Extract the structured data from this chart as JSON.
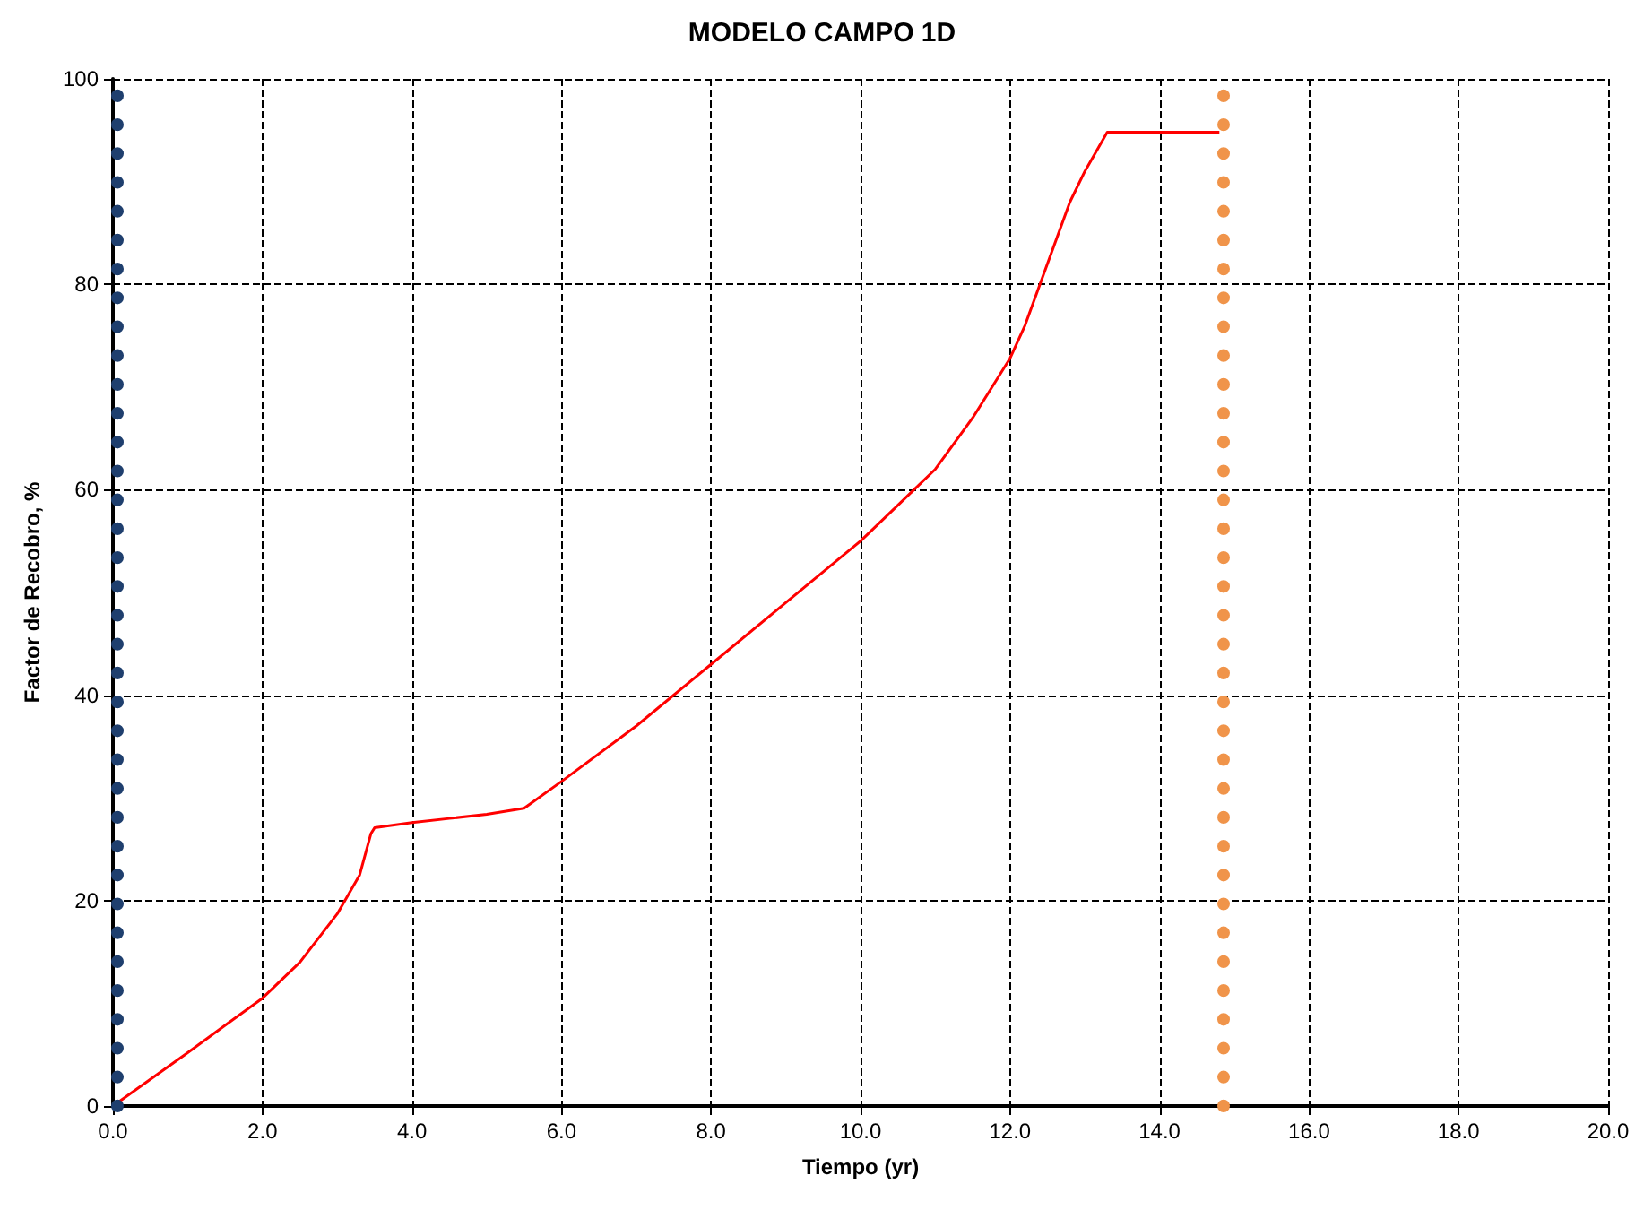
{
  "chart_data": {
    "type": "line",
    "title": "MODELO CAMPO 1D",
    "xlabel": "Tiempo (yr)",
    "ylabel": "Factor de Recobro, %",
    "x": [
      0,
      1,
      2,
      2.5,
      3,
      3.3,
      3.45,
      3.5,
      4,
      4.5,
      5,
      5.5,
      6,
      7,
      8,
      9,
      10,
      10.5,
      11,
      11.5,
      12,
      12.2,
      12.5,
      12.8,
      13,
      13.3,
      14.8
    ],
    "series": [
      {
        "color": "#ff0000",
        "values": [
          0,
          5.2,
          10.5,
          14,
          18.7,
          22.5,
          26.5,
          27.1,
          27.6,
          28,
          28.4,
          29,
          31.6,
          37,
          43,
          49,
          55,
          58.5,
          62,
          67,
          72.8,
          76,
          82,
          88,
          91,
          94.8,
          94.8
        ]
      }
    ],
    "xlim": [
      0,
      20
    ],
    "xticks": [
      {
        "value": 0,
        "label": "0.0"
      },
      {
        "value": 2,
        "label": "2.0"
      },
      {
        "value": 4,
        "label": "4.0"
      },
      {
        "value": 6,
        "label": "6.0"
      },
      {
        "value": 8,
        "label": "8.0"
      },
      {
        "value": 10,
        "label": "10.0"
      },
      {
        "value": 12,
        "label": "12.0"
      },
      {
        "value": 14,
        "label": "14.0"
      },
      {
        "value": 16,
        "label": "16.0"
      },
      {
        "value": 18,
        "label": "18.0"
      },
      {
        "value": 20,
        "label": "20.0"
      }
    ],
    "ylim": [
      0,
      100
    ],
    "yticks": [
      0,
      20,
      40,
      60,
      80,
      100
    ],
    "ref_lines": [
      {
        "axis": "x",
        "value": 0.05,
        "label": null,
        "color": "#1f3f6e",
        "line_style": "dotted"
      },
      {
        "axis": "x",
        "value": 14.85,
        "label": null,
        "color": "#f0944a",
        "line_style": "dotted"
      }
    ],
    "grid": true,
    "marker": "none",
    "line_style": "solid"
  }
}
